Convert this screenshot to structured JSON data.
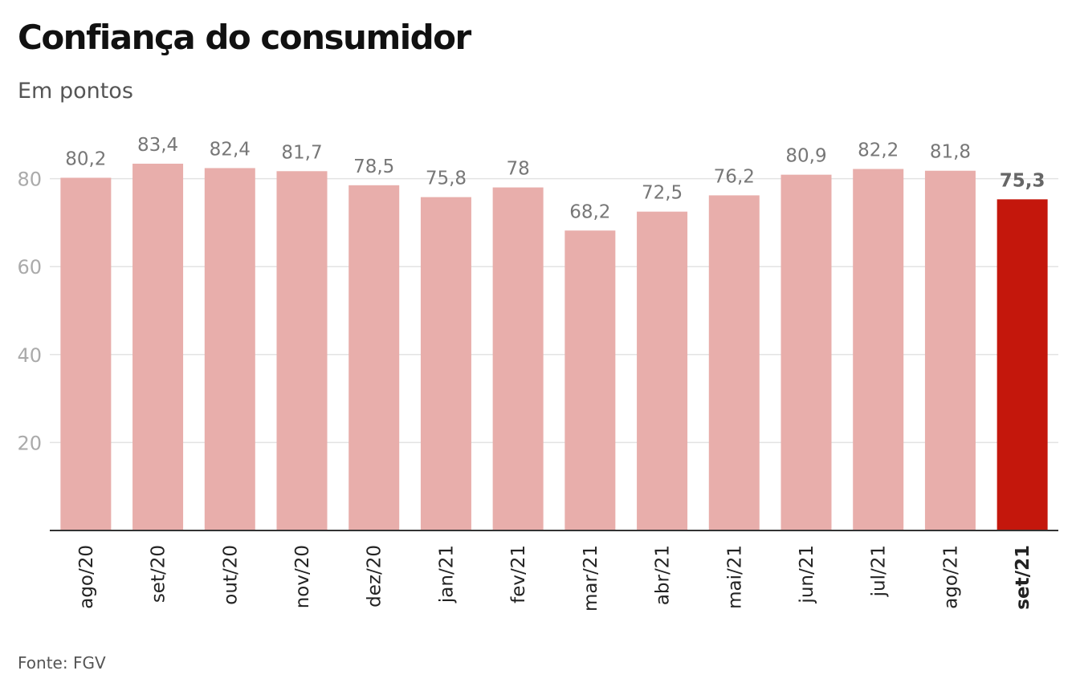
{
  "chart_data": {
    "type": "bar",
    "title": "Confiança do consumidor",
    "subtitle": "Em pontos",
    "source": "Fonte: FGV",
    "categories": [
      "ago/20",
      "set/20",
      "out/20",
      "nov/20",
      "dez/20",
      "jan/21",
      "fev/21",
      "mar/21",
      "abr/21",
      "mai/21",
      "jun/21",
      "jul/21",
      "ago/21",
      "set/21"
    ],
    "values": [
      80.2,
      83.4,
      82.4,
      81.7,
      78.5,
      75.8,
      78,
      68.2,
      72.5,
      76.2,
      80.9,
      82.2,
      81.8,
      75.3
    ],
    "value_labels": [
      "80,2",
      "83,4",
      "82,4",
      "81,7",
      "78,5",
      "75,8",
      "78",
      "68,2",
      "72,5",
      "76,2",
      "80,9",
      "82,2",
      "81,8",
      "75,3"
    ],
    "highlight_category": "set/21",
    "yticks": [
      20,
      40,
      60,
      80
    ],
    "ylim": [
      0,
      90
    ],
    "grid": true,
    "colors": {
      "bar": "#e8aeab",
      "highlight": "#c4170c",
      "grid": "#e3e3e3",
      "axis": "#333333"
    }
  }
}
